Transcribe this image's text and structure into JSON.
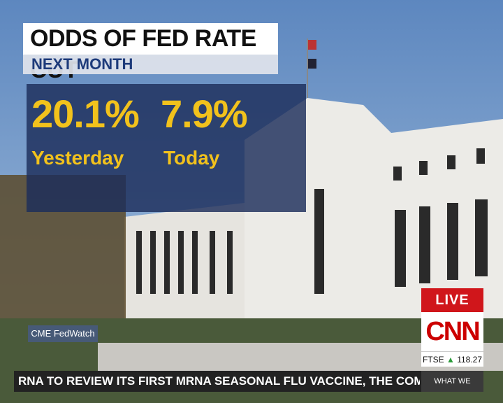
{
  "graphic": {
    "title": "ODDS OF FED RATE CUT",
    "subtitle": "NEXT MONTH",
    "stats": [
      {
        "value": "20.1%",
        "label": "Yesterday"
      },
      {
        "value": "7.9%",
        "label": "Today"
      }
    ],
    "source": "CME FedWatch"
  },
  "bug": {
    "live": "LIVE",
    "logo": "CNN",
    "ticker_name": "FTSE",
    "ticker_value": "118.27"
  },
  "crawl": {
    "text": "RNA TO REVIEW ITS FIRST MRNA SEASONAL FLU VACCINE, THE COMPANY SAID TU",
    "tag": "WHAT WE KNOW"
  }
}
